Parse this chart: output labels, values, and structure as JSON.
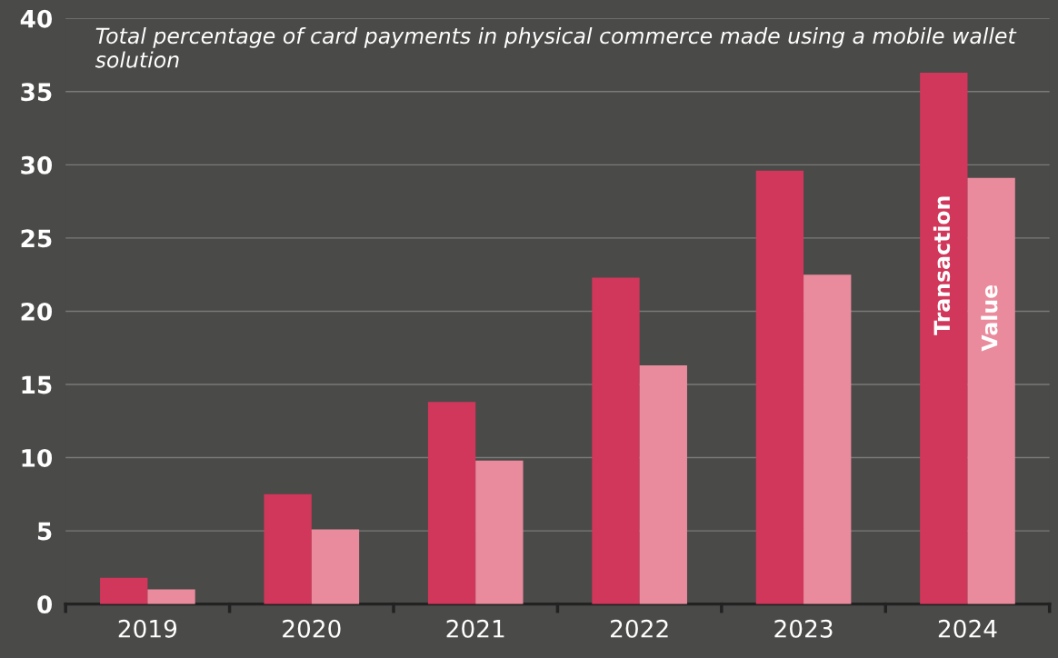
{
  "chart_data": {
    "type": "bar",
    "title": "Total percentage of card payments in physical commerce made using a mobile wallet solution",
    "categories": [
      "2019",
      "2020",
      "2021",
      "2022",
      "2023",
      "2024"
    ],
    "series": [
      {
        "name": "Transaction",
        "color": "#d1375a",
        "values": [
          1.8,
          7.5,
          13.8,
          22.3,
          29.6,
          36.3
        ]
      },
      {
        "name": "Value",
        "color": "#e98b9c",
        "values": [
          1.0,
          5.1,
          9.8,
          16.3,
          22.5,
          29.1
        ]
      }
    ],
    "ylim": [
      0,
      40
    ],
    "yticks": [
      0,
      5,
      10,
      15,
      20,
      25,
      30,
      35,
      40
    ],
    "grid": "y",
    "legend": false
  }
}
